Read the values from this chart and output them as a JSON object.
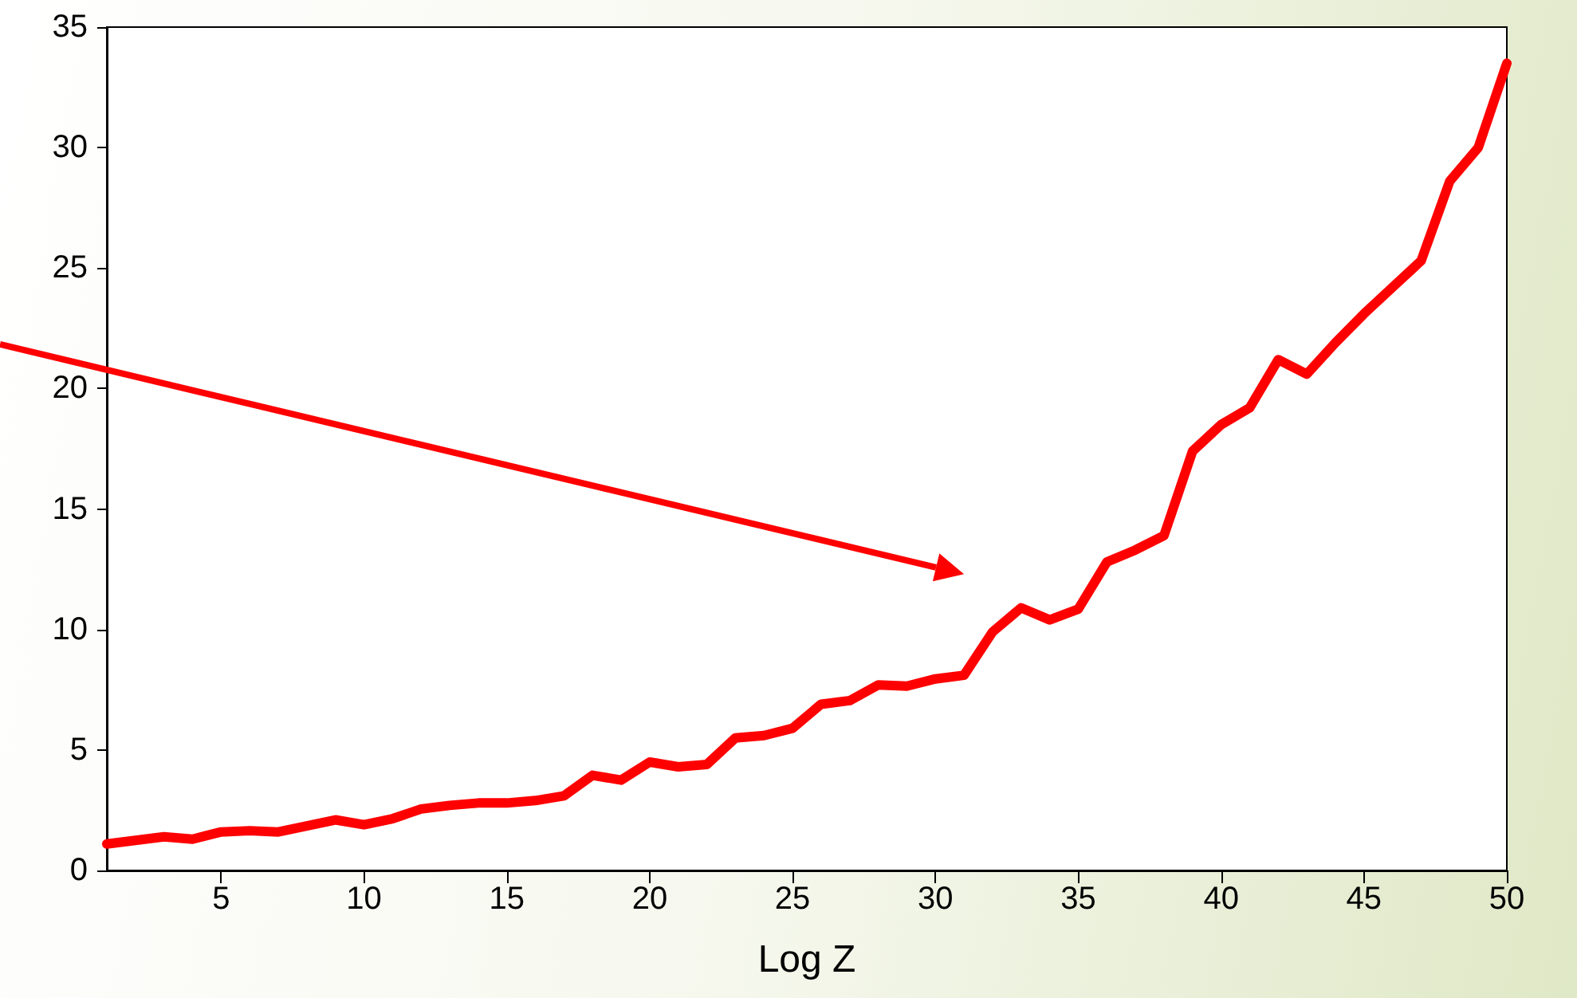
{
  "chart_data": {
    "type": "line",
    "xlabel": "Log Z",
    "x": [
      1,
      2,
      3,
      4,
      5,
      6,
      7,
      8,
      9,
      10,
      11,
      12,
      13,
      14,
      15,
      16,
      17,
      18,
      19,
      20,
      21,
      22,
      23,
      24,
      25,
      26,
      27,
      28,
      29,
      30,
      31,
      32,
      33,
      34,
      35,
      36,
      37,
      38,
      39,
      40,
      41,
      42,
      43,
      44,
      45,
      46,
      47,
      48,
      49,
      50
    ],
    "series": [
      {
        "color": "#ff0000",
        "values": [
          1.1,
          1.25,
          1.4,
          1.3,
          1.6,
          1.65,
          1.6,
          1.85,
          2.1,
          1.9,
          2.15,
          2.55,
          2.7,
          2.8,
          2.8,
          2.9,
          3.1,
          3.95,
          3.75,
          4.5,
          4.3,
          4.4,
          5.5,
          5.6,
          5.9,
          6.9,
          7.05,
          7.7,
          7.65,
          7.95,
          8.1,
          9.9,
          10.9,
          10.4,
          10.85,
          12.8,
          13.3,
          13.9,
          17.4,
          18.5,
          19.2,
          21.2,
          20.6,
          21.9,
          23.1,
          24.2,
          25.3,
          28.6,
          30.0,
          33.5
        ]
      }
    ],
    "xlim": [
      1,
      50
    ],
    "xticks": [
      5,
      10,
      15,
      20,
      25,
      30,
      35,
      40,
      45,
      50
    ],
    "ylim": [
      0,
      35
    ],
    "yticks": [
      0,
      5,
      10,
      15,
      20,
      25,
      30,
      35
    ],
    "marker": "none",
    "line_style": "solid"
  }
}
